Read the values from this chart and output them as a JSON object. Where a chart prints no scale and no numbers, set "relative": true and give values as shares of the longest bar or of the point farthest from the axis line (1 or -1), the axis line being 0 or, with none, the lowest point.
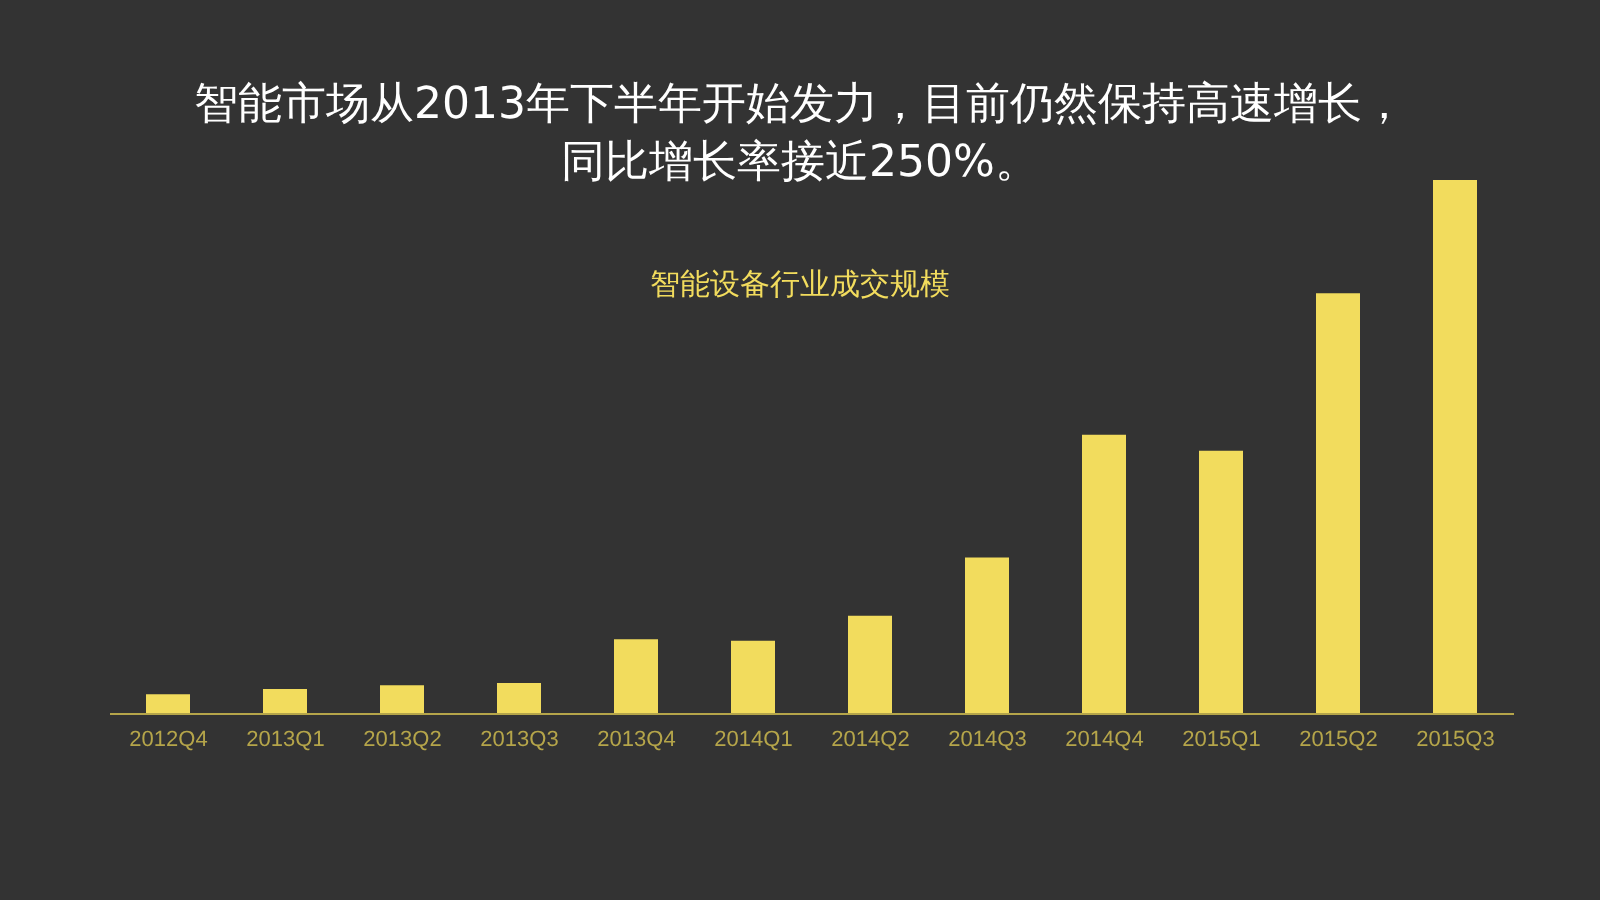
{
  "chart_data": {
    "type": "bar",
    "title": "智能市场从2013年下半年开始发力，目前仍然保持高速增长，同比增长率接近250%。",
    "subtitle": "智能设备行业成交规模",
    "relative": true,
    "categories": [
      "2012Q4",
      "2013Q1",
      "2013Q2",
      "2013Q3",
      "2013Q4",
      "2014Q1",
      "2014Q2",
      "2014Q3",
      "2014Q4",
      "2015Q1",
      "2015Q2",
      "2015Q3"
    ],
    "values": [
      0.037,
      0.047,
      0.054,
      0.058,
      0.14,
      0.137,
      0.184,
      0.293,
      0.523,
      0.493,
      0.788,
      1
    ],
    "color": "#f2dc5d",
    "grid": false,
    "legend": false
  }
}
